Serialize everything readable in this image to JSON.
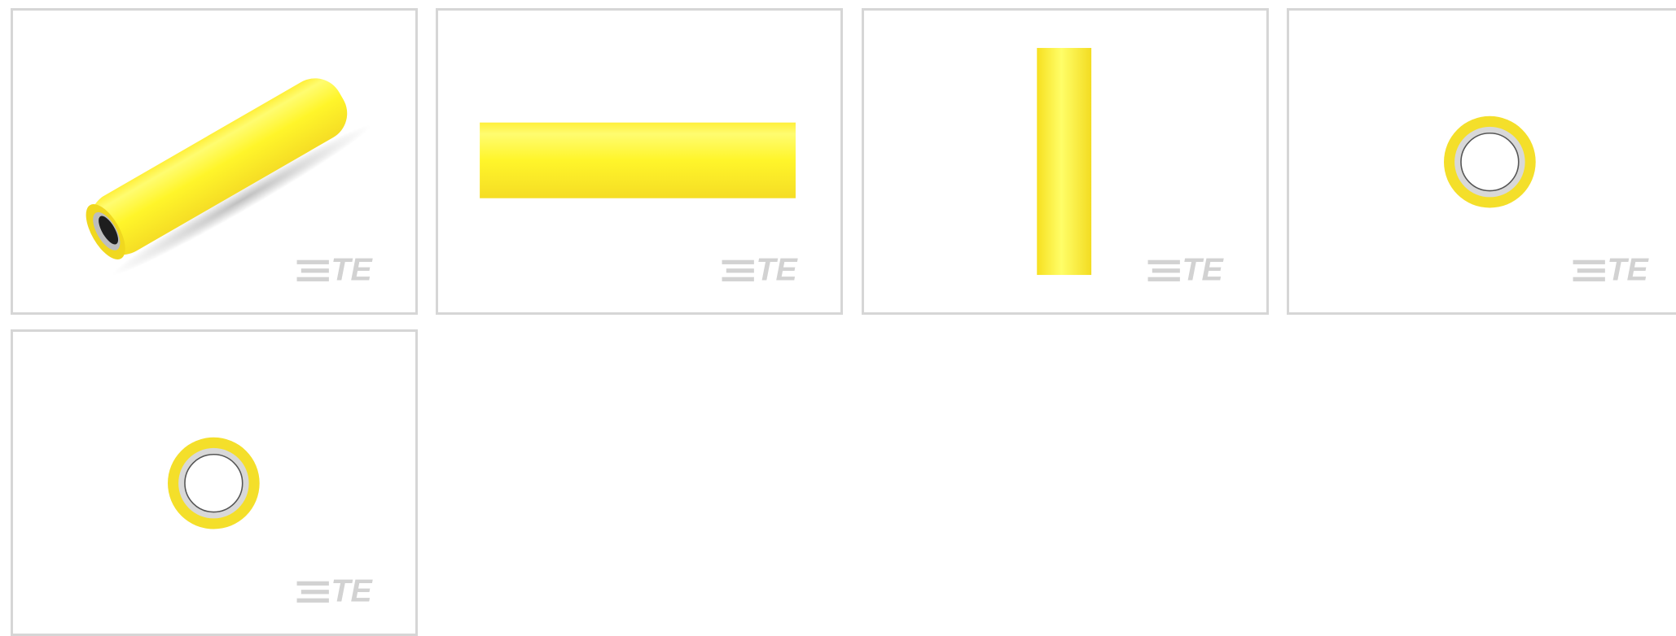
{
  "gallery": {
    "logos": [
      "TE",
      "TE",
      "TE",
      "TE",
      "TE"
    ]
  }
}
